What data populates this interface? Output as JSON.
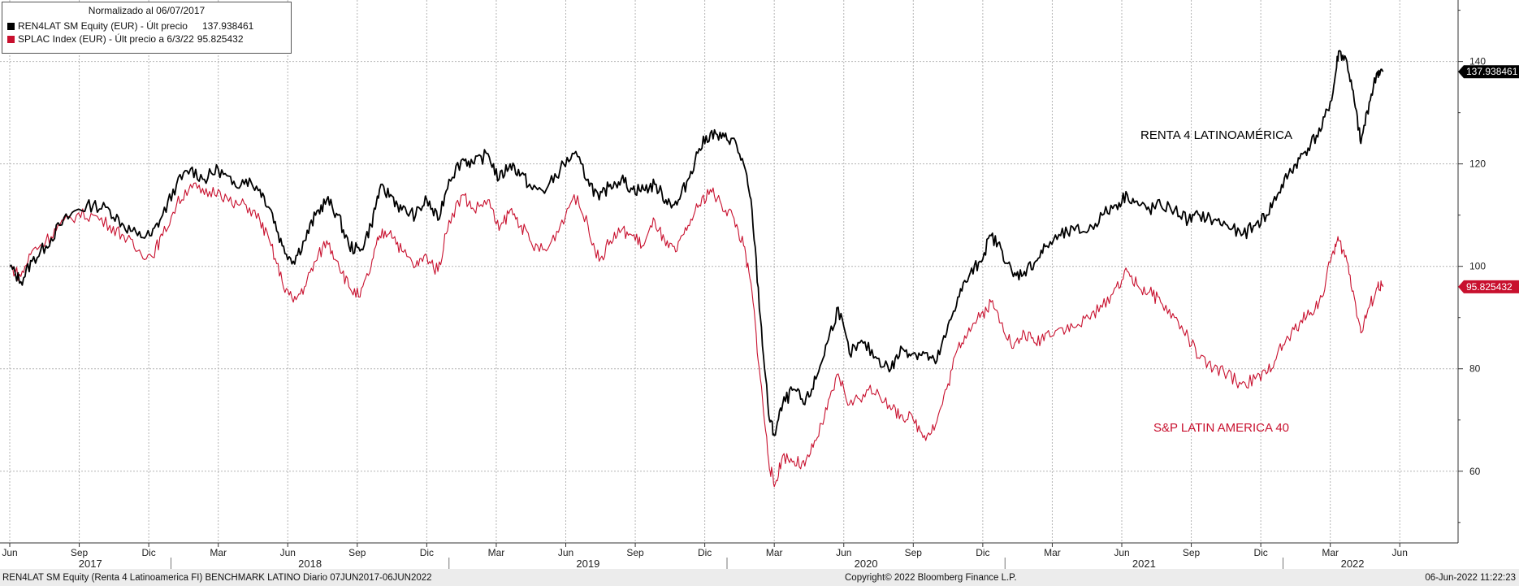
{
  "legend": {
    "title": "Normalizado al 06/07/2017",
    "series1_label": "REN4LAT SM Equity (EUR) - Últ precio",
    "series1_value": "137.938461",
    "series2_label": "SPLAC Index (EUR) - Últ precio a 6/3/22",
    "series2_value": "95.825432"
  },
  "footer": {
    "left": "REN4LAT SM Equity (Renta 4 Latinoamerica FI) BENCHMARK LATINO  Diario 07JUN2017-06JUN2022",
    "center": "Copyright© 2022 Bloomberg Finance L.P.",
    "right": "06-Jun-2022 11:22:23"
  },
  "chart_data": {
    "type": "line",
    "title": "Normalizado al 06/07/2017",
    "ylim": [
      46,
      152
    ],
    "y_ticks": [
      60,
      80,
      100,
      120,
      140
    ],
    "y_tick_labels": [
      "60",
      "80",
      "100",
      "120",
      "140"
    ],
    "x_range": [
      2017.42,
      2022.58
    ],
    "month_ticks": [
      {
        "label": "Jun",
        "x": 2017.42
      },
      {
        "label": "Sep",
        "x": 2017.67
      },
      {
        "label": "Dic",
        "x": 2017.92
      },
      {
        "label": "Mar",
        "x": 2018.17
      },
      {
        "label": "Jun",
        "x": 2018.42
      },
      {
        "label": "Sep",
        "x": 2018.67
      },
      {
        "label": "Dic",
        "x": 2018.92
      },
      {
        "label": "Mar",
        "x": 2019.17
      },
      {
        "label": "Jun",
        "x": 2019.42
      },
      {
        "label": "Sep",
        "x": 2019.67
      },
      {
        "label": "Dic",
        "x": 2019.92
      },
      {
        "label": "Mar",
        "x": 2020.17
      },
      {
        "label": "Jun",
        "x": 2020.42
      },
      {
        "label": "Sep",
        "x": 2020.67
      },
      {
        "label": "Dic",
        "x": 2020.92
      },
      {
        "label": "Mar",
        "x": 2021.17
      },
      {
        "label": "Jun",
        "x": 2021.42
      },
      {
        "label": "Sep",
        "x": 2021.67
      },
      {
        "label": "Dic",
        "x": 2021.92
      },
      {
        "label": "Mar",
        "x": 2022.17
      },
      {
        "label": "Jun",
        "x": 2022.42
      }
    ],
    "year_ticks": [
      {
        "label": "2017",
        "x": 2017.71
      },
      {
        "label": "2018",
        "x": 2018.5
      },
      {
        "label": "2019",
        "x": 2019.5
      },
      {
        "label": "2020",
        "x": 2020.5
      },
      {
        "label": "2021",
        "x": 2021.5
      },
      {
        "label": "2022",
        "x": 2022.25
      }
    ],
    "year_separators": [
      2018.0,
      2019.0,
      2020.0,
      2021.0,
      2022.0
    ],
    "series": [
      {
        "name": "REN4LAT SM Equity (EUR) - Últ precio",
        "annotation": "RENTA 4 LATINOAMÉRICA",
        "color": "#000000",
        "last_value_label": "137.938461",
        "points": [
          [
            2017.42,
            100
          ],
          [
            2017.46,
            97
          ],
          [
            2017.5,
            101
          ],
          [
            2017.55,
            104
          ],
          [
            2017.6,
            108
          ],
          [
            2017.66,
            111
          ],
          [
            2017.72,
            112
          ],
          [
            2017.78,
            111
          ],
          [
            2017.83,
            108
          ],
          [
            2017.88,
            106
          ],
          [
            2017.93,
            106
          ],
          [
            2017.97,
            110
          ],
          [
            2018.02,
            116
          ],
          [
            2018.07,
            119
          ],
          [
            2018.12,
            117
          ],
          [
            2018.17,
            119
          ],
          [
            2018.22,
            116
          ],
          [
            2018.27,
            117
          ],
          [
            2018.32,
            115
          ],
          [
            2018.36,
            111
          ],
          [
            2018.4,
            104
          ],
          [
            2018.44,
            101
          ],
          [
            2018.48,
            105
          ],
          [
            2018.52,
            110
          ],
          [
            2018.56,
            113
          ],
          [
            2018.6,
            110
          ],
          [
            2018.64,
            104
          ],
          [
            2018.68,
            103
          ],
          [
            2018.72,
            108
          ],
          [
            2018.75,
            115
          ],
          [
            2018.79,
            114
          ],
          [
            2018.83,
            111
          ],
          [
            2018.88,
            110
          ],
          [
            2018.92,
            113
          ],
          [
            2018.96,
            109
          ],
          [
            2019.0,
            117
          ],
          [
            2019.05,
            121
          ],
          [
            2019.09,
            120
          ],
          [
            2019.14,
            122
          ],
          [
            2019.18,
            117
          ],
          [
            2019.22,
            120
          ],
          [
            2019.26,
            118
          ],
          [
            2019.3,
            115
          ],
          [
            2019.35,
            115
          ],
          [
            2019.4,
            119
          ],
          [
            2019.45,
            122
          ],
          [
            2019.5,
            117
          ],
          [
            2019.54,
            113
          ],
          [
            2019.58,
            116
          ],
          [
            2019.62,
            117
          ],
          [
            2019.66,
            115
          ],
          [
            2019.7,
            115
          ],
          [
            2019.74,
            116
          ],
          [
            2019.78,
            113
          ],
          [
            2019.82,
            112
          ],
          [
            2019.86,
            117
          ],
          [
            2019.9,
            123
          ],
          [
            2019.94,
            126
          ],
          [
            2019.98,
            125
          ],
          [
            2020.02,
            125
          ],
          [
            2020.06,
            120
          ],
          [
            2020.09,
            111
          ],
          [
            2020.12,
            90
          ],
          [
            2020.15,
            71
          ],
          [
            2020.17,
            67
          ],
          [
            2020.2,
            73
          ],
          [
            2020.24,
            76
          ],
          [
            2020.28,
            73
          ],
          [
            2020.32,
            78
          ],
          [
            2020.36,
            85
          ],
          [
            2020.4,
            92
          ],
          [
            2020.44,
            83
          ],
          [
            2020.49,
            85
          ],
          [
            2020.54,
            82
          ],
          [
            2020.59,
            80
          ],
          [
            2020.63,
            84
          ],
          [
            2020.67,
            83
          ],
          [
            2020.71,
            83
          ],
          [
            2020.75,
            81
          ],
          [
            2020.79,
            87
          ],
          [
            2020.83,
            94
          ],
          [
            2020.87,
            98
          ],
          [
            2020.91,
            101
          ],
          [
            2020.95,
            106
          ],
          [
            2020.99,
            103
          ],
          [
            2021.03,
            98
          ],
          [
            2021.07,
            99
          ],
          [
            2021.11,
            101
          ],
          [
            2021.15,
            104
          ],
          [
            2021.2,
            106
          ],
          [
            2021.25,
            107
          ],
          [
            2021.3,
            107
          ],
          [
            2021.35,
            110
          ],
          [
            2021.4,
            112
          ],
          [
            2021.44,
            114
          ],
          [
            2021.48,
            112
          ],
          [
            2021.52,
            111
          ],
          [
            2021.56,
            112
          ],
          [
            2021.61,
            111
          ],
          [
            2021.66,
            109
          ],
          [
            2021.7,
            110
          ],
          [
            2021.75,
            109
          ],
          [
            2021.8,
            108
          ],
          [
            2021.85,
            106
          ],
          [
            2021.9,
            108
          ],
          [
            2021.94,
            110
          ],
          [
            2021.98,
            114
          ],
          [
            2022.02,
            118
          ],
          [
            2022.06,
            121
          ],
          [
            2022.1,
            124
          ],
          [
            2022.14,
            127
          ],
          [
            2022.18,
            134
          ],
          [
            2022.2,
            142
          ],
          [
            2022.23,
            140
          ],
          [
            2022.26,
            131
          ],
          [
            2022.28,
            124
          ],
          [
            2022.31,
            132
          ],
          [
            2022.34,
            138
          ],
          [
            2022.36,
            138
          ]
        ]
      },
      {
        "name": "SPLAC Index (EUR) - Últ precio a 6/3/22",
        "annotation": "S&P LATIN AMERICA 40",
        "color": "#c8102e",
        "last_value_label": "95.825432",
        "points": [
          [
            2017.42,
            100
          ],
          [
            2017.46,
            98
          ],
          [
            2017.5,
            103
          ],
          [
            2017.55,
            105
          ],
          [
            2017.6,
            108
          ],
          [
            2017.66,
            110
          ],
          [
            2017.72,
            110
          ],
          [
            2017.78,
            108
          ],
          [
            2017.83,
            106
          ],
          [
            2017.88,
            103
          ],
          [
            2017.93,
            102
          ],
          [
            2017.97,
            106
          ],
          [
            2018.02,
            112
          ],
          [
            2018.07,
            116
          ],
          [
            2018.12,
            114
          ],
          [
            2018.17,
            115
          ],
          [
            2018.22,
            112
          ],
          [
            2018.27,
            112
          ],
          [
            2018.32,
            109
          ],
          [
            2018.36,
            104
          ],
          [
            2018.4,
            97
          ],
          [
            2018.44,
            93
          ],
          [
            2018.48,
            96
          ],
          [
            2018.52,
            101
          ],
          [
            2018.56,
            105
          ],
          [
            2018.6,
            101
          ],
          [
            2018.64,
            96
          ],
          [
            2018.68,
            94
          ],
          [
            2018.72,
            100
          ],
          [
            2018.75,
            106
          ],
          [
            2018.79,
            107
          ],
          [
            2018.83,
            103
          ],
          [
            2018.88,
            100
          ],
          [
            2018.92,
            102
          ],
          [
            2018.96,
            99
          ],
          [
            2019.0,
            109
          ],
          [
            2019.05,
            114
          ],
          [
            2019.09,
            111
          ],
          [
            2019.14,
            113
          ],
          [
            2019.18,
            107
          ],
          [
            2019.22,
            111
          ],
          [
            2019.26,
            108
          ],
          [
            2019.3,
            104
          ],
          [
            2019.35,
            103
          ],
          [
            2019.4,
            108
          ],
          [
            2019.45,
            114
          ],
          [
            2019.5,
            108
          ],
          [
            2019.54,
            101
          ],
          [
            2019.58,
            105
          ],
          [
            2019.62,
            107
          ],
          [
            2019.66,
            106
          ],
          [
            2019.7,
            104
          ],
          [
            2019.74,
            109
          ],
          [
            2019.78,
            104
          ],
          [
            2019.82,
            103
          ],
          [
            2019.86,
            108
          ],
          [
            2019.9,
            112
          ],
          [
            2019.94,
            115
          ],
          [
            2019.98,
            112
          ],
          [
            2020.02,
            110
          ],
          [
            2020.06,
            104
          ],
          [
            2020.09,
            95
          ],
          [
            2020.12,
            78
          ],
          [
            2020.15,
            62
          ],
          [
            2020.17,
            57
          ],
          [
            2020.2,
            63
          ],
          [
            2020.24,
            62
          ],
          [
            2020.28,
            61
          ],
          [
            2020.32,
            66
          ],
          [
            2020.36,
            72
          ],
          [
            2020.4,
            79
          ],
          [
            2020.44,
            73
          ],
          [
            2020.49,
            75
          ],
          [
            2020.54,
            76
          ],
          [
            2020.59,
            72
          ],
          [
            2020.63,
            71
          ],
          [
            2020.67,
            70
          ],
          [
            2020.71,
            67
          ],
          [
            2020.75,
            69
          ],
          [
            2020.79,
            76
          ],
          [
            2020.83,
            84
          ],
          [
            2020.87,
            88
          ],
          [
            2020.91,
            90
          ],
          [
            2020.95,
            93
          ],
          [
            2020.99,
            89
          ],
          [
            2021.03,
            84
          ],
          [
            2021.07,
            87
          ],
          [
            2021.11,
            85
          ],
          [
            2021.15,
            87
          ],
          [
            2021.2,
            88
          ],
          [
            2021.25,
            88
          ],
          [
            2021.3,
            90
          ],
          [
            2021.35,
            92
          ],
          [
            2021.4,
            96
          ],
          [
            2021.44,
            99
          ],
          [
            2021.48,
            96
          ],
          [
            2021.52,
            95
          ],
          [
            2021.56,
            93
          ],
          [
            2021.61,
            90
          ],
          [
            2021.66,
            86
          ],
          [
            2021.7,
            82
          ],
          [
            2021.75,
            80
          ],
          [
            2021.8,
            79
          ],
          [
            2021.85,
            77
          ],
          [
            2021.9,
            78
          ],
          [
            2021.94,
            79
          ],
          [
            2021.98,
            83
          ],
          [
            2022.02,
            86
          ],
          [
            2022.06,
            89
          ],
          [
            2022.1,
            91
          ],
          [
            2022.14,
            94
          ],
          [
            2022.18,
            103
          ],
          [
            2022.2,
            105
          ],
          [
            2022.23,
            101
          ],
          [
            2022.26,
            93
          ],
          [
            2022.28,
            87
          ],
          [
            2022.31,
            92
          ],
          [
            2022.34,
            96
          ],
          [
            2022.36,
            96
          ]
        ]
      }
    ]
  }
}
